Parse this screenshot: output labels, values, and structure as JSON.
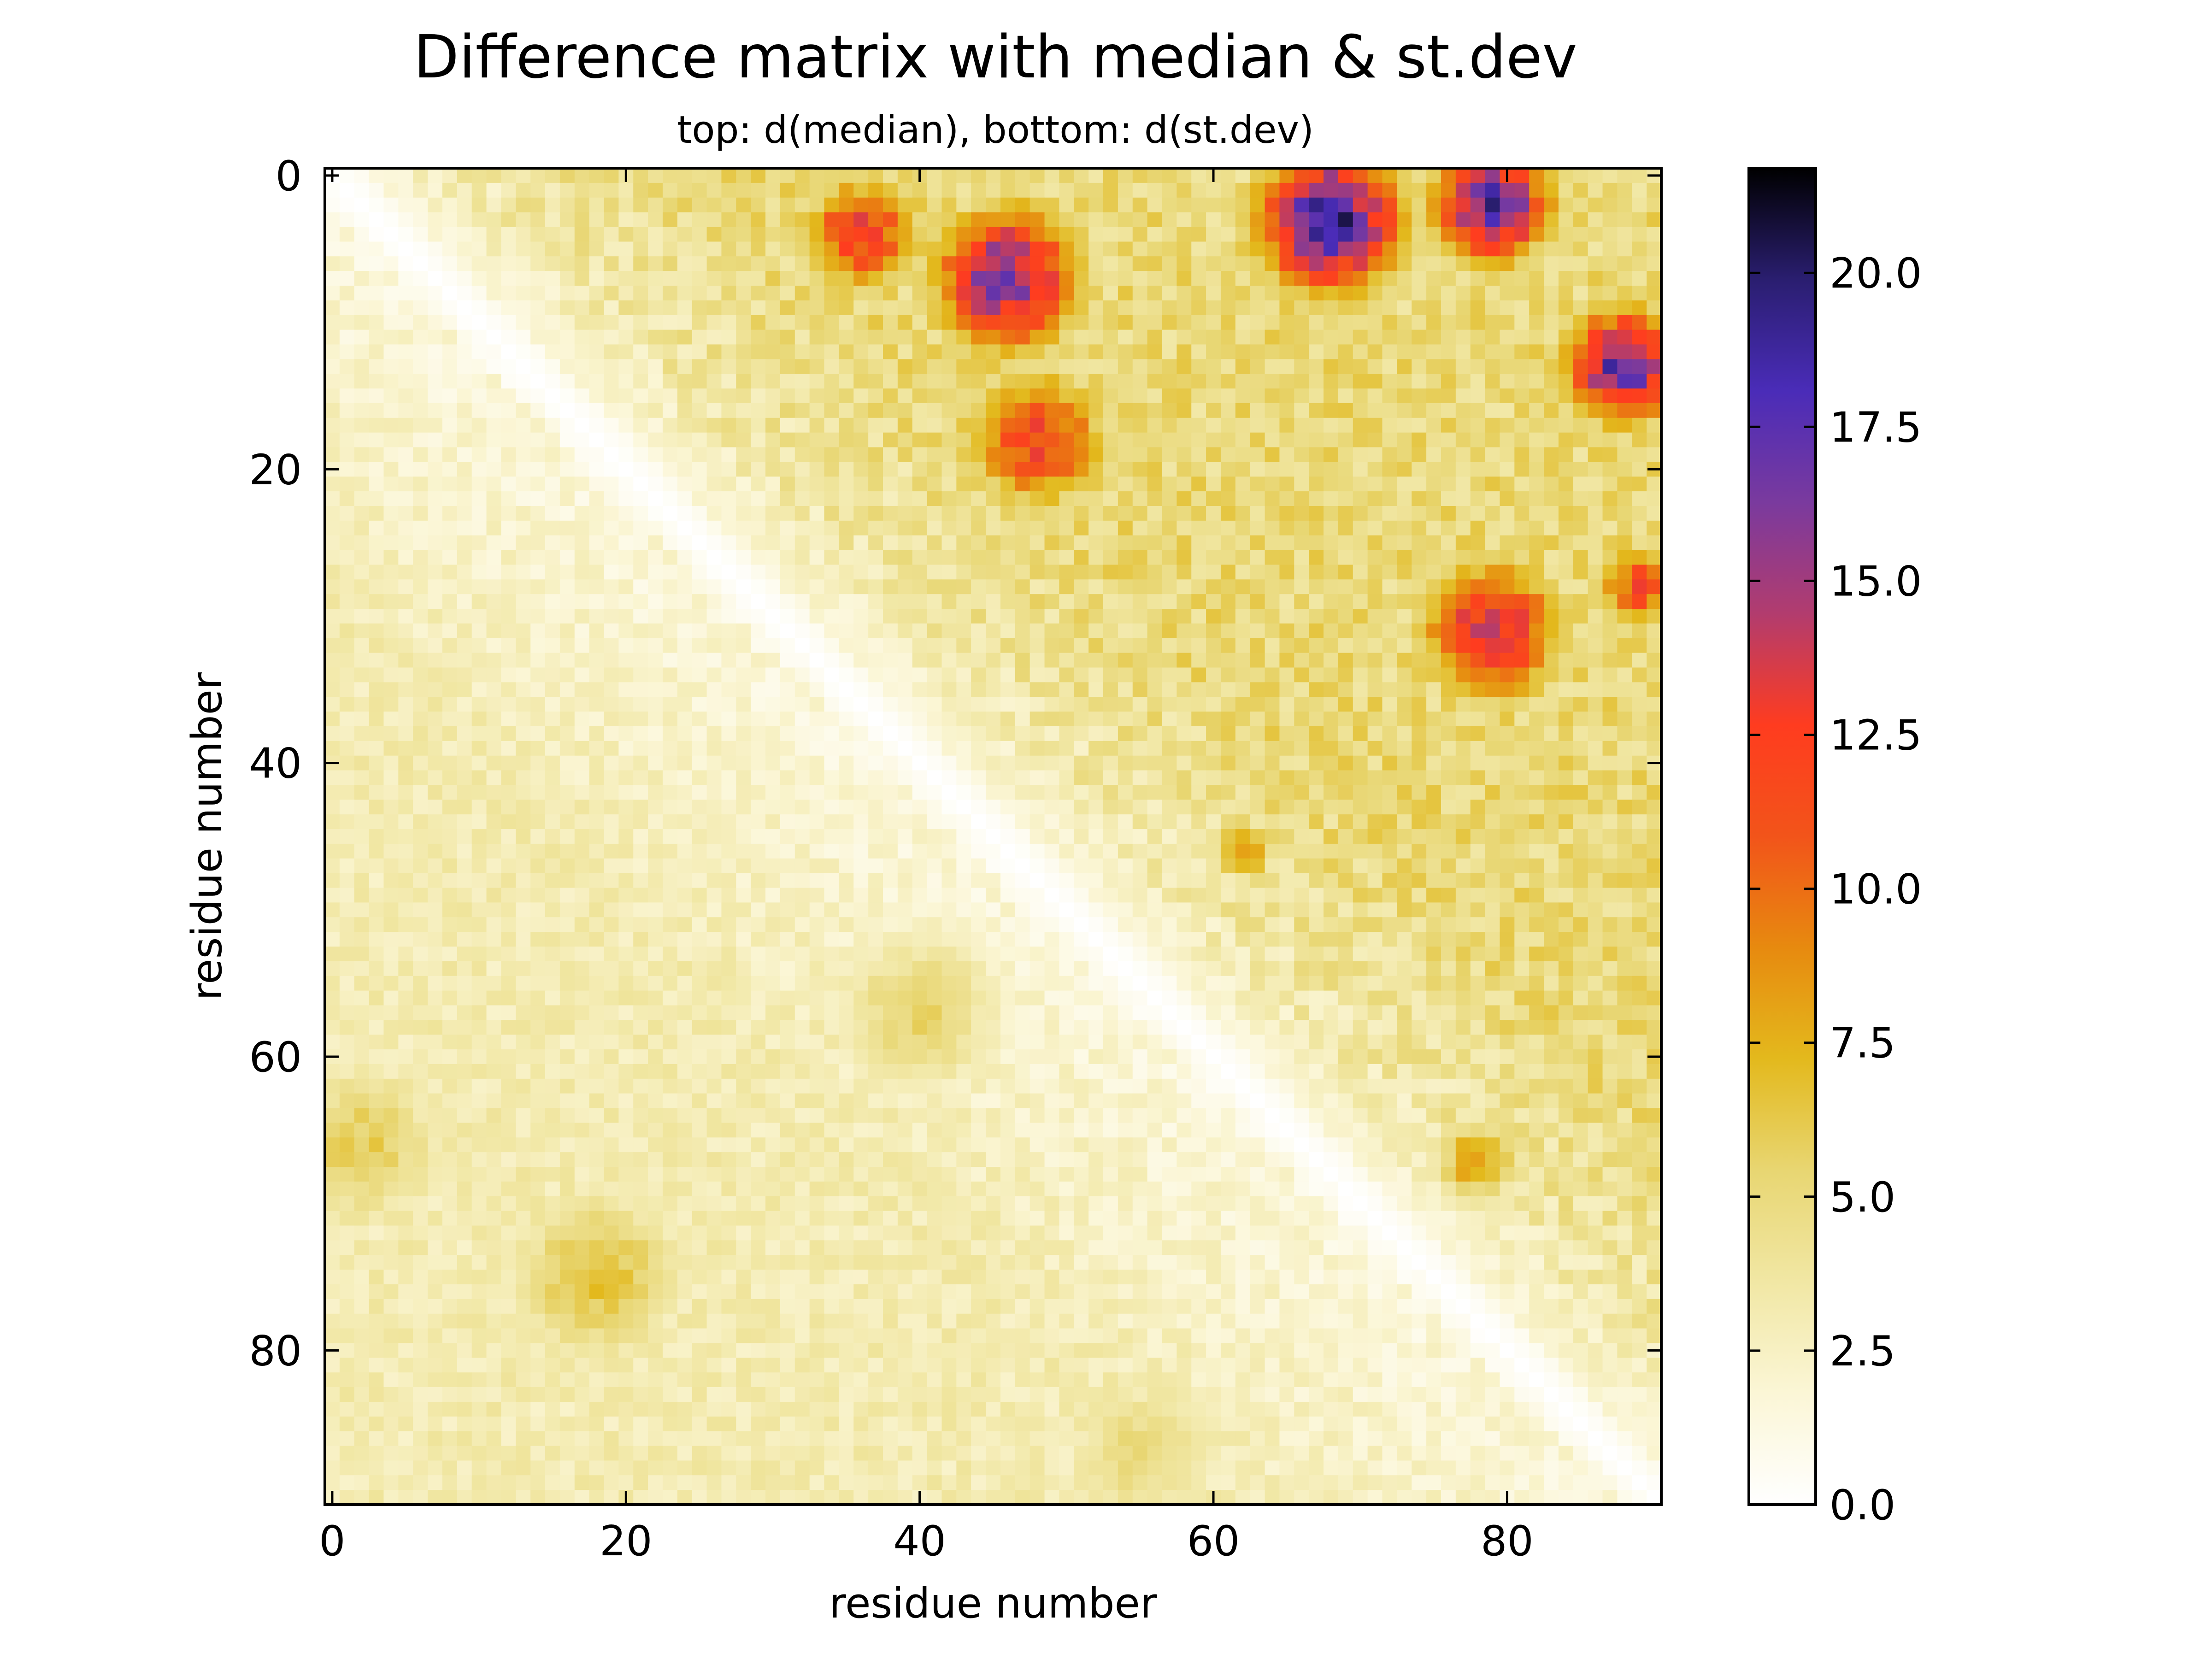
{
  "chart_data": {
    "type": "heatmap",
    "title": "Difference matrix with median & st.dev",
    "subtitle": "top: d(median),  bottom: d(st.dev)",
    "xlabel": "residue number",
    "ylabel": "residue number",
    "n_residues": 91,
    "x_ticks": [
      0,
      20,
      40,
      60,
      80
    ],
    "x_tick_labels": [
      "0",
      "20",
      "40",
      "60",
      "80"
    ],
    "y_ticks": [
      0,
      20,
      40,
      60,
      80
    ],
    "y_tick_labels": [
      "0",
      "20",
      "40",
      "60",
      "80"
    ],
    "x_range": [
      -0.5,
      90.5
    ],
    "y_range": [
      90.5,
      -0.5
    ],
    "colorbar": {
      "min": 0.0,
      "max": 21.7,
      "ticks": [
        0.0,
        2.5,
        5.0,
        7.5,
        10.0,
        12.5,
        15.0,
        17.5,
        20.0
      ],
      "tick_labels": [
        "0.0",
        "2.5",
        "5.0",
        "7.5",
        "10.0",
        "12.5",
        "15.0",
        "17.5",
        "20.0"
      ],
      "colormap": [
        "#ffffff",
        "#fbf6d6",
        "#f1e7a4",
        "#e8d672",
        "#e3b91d",
        "#e78a0f",
        "#f2541a",
        "#ff3c1f",
        "#b23c6e",
        "#7a3a9e",
        "#4a2cb8",
        "#2a1e70",
        "#000000"
      ]
    },
    "upper_triangle": "d(median)",
    "lower_triangle": "d(st.dev)",
    "regions": [
      {
        "triangle": "upper",
        "x_center": 46,
        "y_center": 7,
        "radius": 5,
        "value": 16.5
      },
      {
        "triangle": "upper",
        "x_center": 36,
        "y_center": 4,
        "radius": 4,
        "value": 12.5
      },
      {
        "triangle": "upper",
        "x_center": 68,
        "y_center": 3,
        "radius": 5,
        "value": 19.0
      },
      {
        "triangle": "upper",
        "x_center": 79,
        "y_center": 2,
        "radius": 4,
        "value": 18.0
      },
      {
        "triangle": "upper",
        "x_center": 88,
        "y_center": 13,
        "radius": 4,
        "value": 17.5
      },
      {
        "triangle": "upper",
        "x_center": 48,
        "y_center": 18,
        "radius": 5,
        "value": 12.0
      },
      {
        "triangle": "upper",
        "x_center": 79,
        "y_center": 31,
        "radius": 5,
        "value": 14.0
      },
      {
        "triangle": "upper",
        "x_center": 89,
        "y_center": 28,
        "radius": 3,
        "value": 11.5
      },
      {
        "triangle": "upper",
        "x_center": 62,
        "y_center": 46,
        "radius": 2,
        "value": 9.5
      },
      {
        "triangle": "upper",
        "x_center": 78,
        "y_center": 67,
        "radius": 3,
        "value": 8.5
      },
      {
        "triangle": "lower",
        "x_center": 18,
        "y_center": 75,
        "radius": 6,
        "value": 7.0
      },
      {
        "triangle": "lower",
        "x_center": 40,
        "y_center": 57,
        "radius": 6,
        "value": 5.5
      },
      {
        "triangle": "lower",
        "x_center": 2,
        "y_center": 66,
        "radius": 6,
        "value": 6.0
      },
      {
        "triangle": "lower",
        "x_center": 55,
        "y_center": 87,
        "radius": 6,
        "value": 5.0
      }
    ]
  }
}
